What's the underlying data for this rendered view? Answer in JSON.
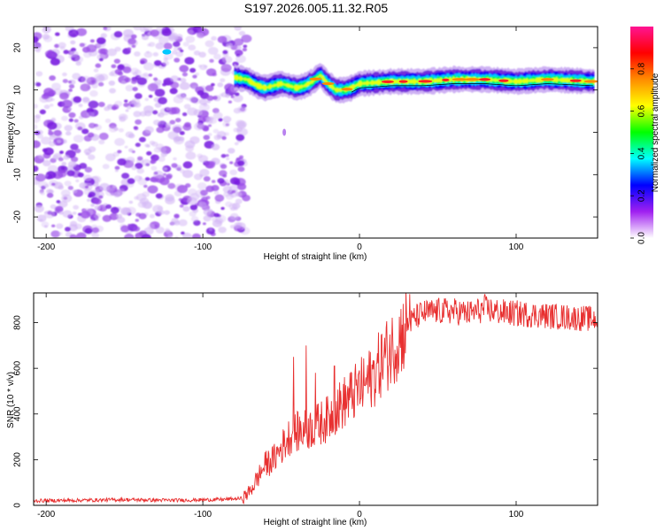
{
  "title": "S197.2026.005.11.32.R05",
  "chart_data": [
    {
      "type": "heatmap",
      "name": "spectrogram",
      "xlabel": "Height of straight line (km)",
      "ylabel": "Frequency (Hz)",
      "xlim": [
        -208,
        152
      ],
      "ylim": [
        -25,
        25
      ],
      "xticks": [
        -200,
        -100,
        0,
        100
      ],
      "yticks": [
        -20,
        -10,
        0,
        10,
        20
      ],
      "noise_region_x": [
        -208,
        -75
      ],
      "ridge": {
        "description": "dominant frequency band",
        "x": [
          -80,
          -72,
          -65,
          -60,
          -55,
          -50,
          -45,
          -40,
          -35,
          -30,
          -25,
          -20,
          -15,
          -10,
          -5,
          0,
          20,
          40,
          60,
          80,
          100,
          120,
          150
        ],
        "freq": [
          13,
          12.5,
          11,
          10.5,
          11,
          11.5,
          11,
          10.5,
          11,
          12,
          13.5,
          11.5,
          10,
          10,
          10.5,
          11.5,
          12,
          12,
          12.5,
          12.5,
          12,
          12.5,
          12
        ]
      },
      "colorbar": {
        "label": "Normalized spectral amplitude",
        "range": [
          0,
          1
        ],
        "ticks": [
          "0.0",
          "0.2",
          "0.4",
          "0.6",
          "0.8"
        ],
        "colors": [
          "#ffffff",
          "#a020f0",
          "#0000ff",
          "#00ffff",
          "#00ff00",
          "#ffff00",
          "#ff8c00",
          "#ff0000",
          "#ff1493"
        ]
      }
    },
    {
      "type": "line",
      "name": "snr",
      "xlabel": "Height of straight line (km)",
      "ylabel": "SNR (10 * v/v)",
      "xlim": [
        -208,
        152
      ],
      "ylim": [
        0,
        930
      ],
      "xticks": [
        -200,
        -100,
        0,
        100
      ],
      "yticks": [
        0,
        200,
        400,
        600,
        800
      ],
      "color": "#e83030",
      "x": [
        -208,
        -180,
        -150,
        -120,
        -90,
        -75,
        -70,
        -65,
        -60,
        -55,
        -50,
        -45,
        -40,
        -35,
        -30,
        -25,
        -20,
        -15,
        -10,
        -5,
        0,
        5,
        10,
        15,
        20,
        25,
        30,
        35,
        40,
        45,
        50,
        60,
        70,
        80,
        90,
        100,
        110,
        120,
        130,
        140,
        152
      ],
      "values": [
        20,
        22,
        25,
        22,
        25,
        30,
        60,
        120,
        180,
        200,
        250,
        300,
        320,
        330,
        340,
        360,
        380,
        420,
        450,
        480,
        510,
        540,
        580,
        640,
        680,
        730,
        780,
        820,
        840,
        845,
        850,
        850,
        840,
        860,
        845,
        840,
        835,
        830,
        825,
        820,
        815
      ],
      "spikes": [
        {
          "x": -42,
          "y": 650
        },
        {
          "x": -34,
          "y": 700
        },
        {
          "x": -28,
          "y": 580
        },
        {
          "x": -16,
          "y": 610
        },
        {
          "x": 80,
          "y": 925
        },
        {
          "x": 32,
          "y": 925
        }
      ]
    }
  ]
}
